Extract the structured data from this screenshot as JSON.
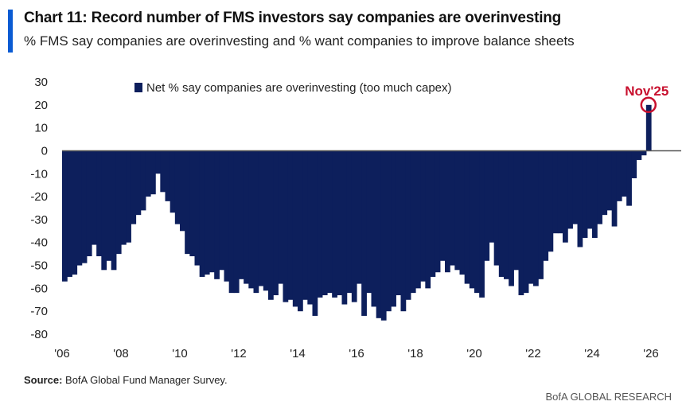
{
  "header": {
    "title": "Chart 11: Record number of FMS investors say companies are overinvesting",
    "subtitle": "% FMS say companies are overinvesting and % want companies to improve balance sheets"
  },
  "footer": {
    "source_label": "Source:",
    "source_text": "BofA Global Fund Manager Survey.",
    "brand": "BofA GLOBAL RESEARCH"
  },
  "colors": {
    "accent": "#0a5bd3",
    "bars": "#0d1f5c",
    "callout": "#c8102e",
    "zero_line": "#555555"
  },
  "chart_data": {
    "type": "bar",
    "series": [
      {
        "name": "Net % say companies are overinvesting (too much capex)"
      }
    ],
    "ylim": [
      -80,
      30
    ],
    "yticks": [
      "30",
      "20",
      "10",
      "0",
      "-10",
      "-20",
      "-30",
      "-40",
      "-50",
      "-60",
      "-70",
      "-80"
    ],
    "xticks": [
      "'06",
      "'08",
      "'10",
      "'12",
      "'14",
      "'16",
      "'18",
      "'20",
      "'22",
      "'24",
      "'26"
    ],
    "grid": false,
    "legend_position": "top-left",
    "annotation": "Nov'25",
    "points": [
      [
        "2006-01",
        -57
      ],
      [
        "2006-03",
        -55
      ],
      [
        "2006-05",
        -54
      ],
      [
        "2006-07",
        -50
      ],
      [
        "2006-09",
        -49
      ],
      [
        "2006-11",
        -46
      ],
      [
        "2007-01",
        -41
      ],
      [
        "2007-03",
        -46
      ],
      [
        "2007-05",
        -52
      ],
      [
        "2007-07",
        -48
      ],
      [
        "2007-09",
        -52
      ],
      [
        "2007-11",
        -45
      ],
      [
        "2008-01",
        -41
      ],
      [
        "2008-03",
        -40
      ],
      [
        "2008-05",
        -32
      ],
      [
        "2008-07",
        -28
      ],
      [
        "2008-09",
        -26
      ],
      [
        "2008-11",
        -20
      ],
      [
        "2009-01",
        -19
      ],
      [
        "2009-03",
        -10
      ],
      [
        "2009-05",
        -18
      ],
      [
        "2009-07",
        -22
      ],
      [
        "2009-09",
        -27
      ],
      [
        "2009-11",
        -32
      ],
      [
        "2010-01",
        -35
      ],
      [
        "2010-03",
        -45
      ],
      [
        "2010-05",
        -46
      ],
      [
        "2010-07",
        -50
      ],
      [
        "2010-09",
        -55
      ],
      [
        "2010-11",
        -54
      ],
      [
        "2011-01",
        -53
      ],
      [
        "2011-03",
        -56
      ],
      [
        "2011-05",
        -52
      ],
      [
        "2011-07",
        -57
      ],
      [
        "2011-09",
        -62
      ],
      [
        "2011-11",
        -62
      ],
      [
        "2012-01",
        -56
      ],
      [
        "2012-03",
        -58
      ],
      [
        "2012-05",
        -60
      ],
      [
        "2012-07",
        -62
      ],
      [
        "2012-09",
        -59
      ],
      [
        "2012-11",
        -61
      ],
      [
        "2013-01",
        -65
      ],
      [
        "2013-03",
        -63
      ],
      [
        "2013-05",
        -58
      ],
      [
        "2013-07",
        -66
      ],
      [
        "2013-09",
        -65
      ],
      [
        "2013-11",
        -68
      ],
      [
        "2014-01",
        -70
      ],
      [
        "2014-03",
        -65
      ],
      [
        "2014-05",
        -67
      ],
      [
        "2014-07",
        -72
      ],
      [
        "2014-09",
        -64
      ],
      [
        "2014-11",
        -63
      ],
      [
        "2015-01",
        -62
      ],
      [
        "2015-03",
        -64
      ],
      [
        "2015-05",
        -63
      ],
      [
        "2015-07",
        -67
      ],
      [
        "2015-09",
        -62
      ],
      [
        "2015-11",
        -66
      ],
      [
        "2016-01",
        -58
      ],
      [
        "2016-03",
        -72
      ],
      [
        "2016-05",
        -62
      ],
      [
        "2016-07",
        -68
      ],
      [
        "2016-09",
        -73
      ],
      [
        "2016-11",
        -74
      ],
      [
        "2017-01",
        -70
      ],
      [
        "2017-03",
        -68
      ],
      [
        "2017-05",
        -63
      ],
      [
        "2017-07",
        -70
      ],
      [
        "2017-09",
        -65
      ],
      [
        "2017-11",
        -62
      ],
      [
        "2018-01",
        -60
      ],
      [
        "2018-03",
        -57
      ],
      [
        "2018-05",
        -60
      ],
      [
        "2018-07",
        -55
      ],
      [
        "2018-09",
        -53
      ],
      [
        "2018-11",
        -48
      ],
      [
        "2019-01",
        -53
      ],
      [
        "2019-03",
        -50
      ],
      [
        "2019-05",
        -52
      ],
      [
        "2019-07",
        -54
      ],
      [
        "2019-09",
        -58
      ],
      [
        "2019-11",
        -60
      ],
      [
        "2020-01",
        -62
      ],
      [
        "2020-03",
        -64
      ],
      [
        "2020-05",
        -48
      ],
      [
        "2020-07",
        -40
      ],
      [
        "2020-09",
        -50
      ],
      [
        "2020-11",
        -55
      ],
      [
        "2021-01",
        -56
      ],
      [
        "2021-03",
        -59
      ],
      [
        "2021-05",
        -52
      ],
      [
        "2021-07",
        -63
      ],
      [
        "2021-09",
        -62
      ],
      [
        "2021-11",
        -58
      ],
      [
        "2022-01",
        -59
      ],
      [
        "2022-03",
        -56
      ],
      [
        "2022-05",
        -48
      ],
      [
        "2022-07",
        -44
      ],
      [
        "2022-09",
        -36
      ],
      [
        "2022-11",
        -36
      ],
      [
        "2023-01",
        -40
      ],
      [
        "2023-03",
        -34
      ],
      [
        "2023-05",
        -32
      ],
      [
        "2023-07",
        -42
      ],
      [
        "2023-09",
        -38
      ],
      [
        "2023-11",
        -34
      ],
      [
        "2024-01",
        -38
      ],
      [
        "2024-03",
        -32
      ],
      [
        "2024-05",
        -28
      ],
      [
        "2024-07",
        -26
      ],
      [
        "2024-09",
        -33
      ],
      [
        "2024-11",
        -22
      ],
      [
        "2025-01",
        -20
      ],
      [
        "2025-03",
        -24
      ],
      [
        "2025-05",
        -12
      ],
      [
        "2025-07",
        -4
      ],
      [
        "2025-09",
        -2
      ],
      [
        "2025-11",
        20
      ]
    ]
  }
}
